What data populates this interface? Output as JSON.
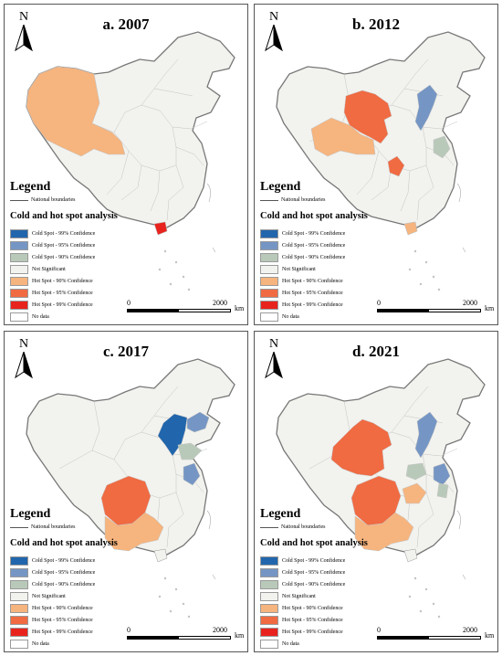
{
  "north_label": "N",
  "legend": {
    "title": "Legend",
    "national_boundaries": "National boundaries",
    "section_title": "Cold and hot spot analysis",
    "items": [
      {
        "key": "cs99",
        "label": "Cold Spot - 99% Confidence",
        "color": "#2166ac"
      },
      {
        "key": "cs95",
        "label": "Cold Spot - 95% Confidence",
        "color": "#7596c4"
      },
      {
        "key": "cs90",
        "label": "Cold Spot - 90% Confidence",
        "color": "#b9c9b9"
      },
      {
        "key": "ns",
        "label": "Not Significant",
        "color": "#f2f2ee"
      },
      {
        "key": "hs90",
        "label": "Hot Spot - 90% Confidence",
        "color": "#f6b47e"
      },
      {
        "key": "hs95",
        "label": "Hot Spot - 95% Confidence",
        "color": "#f06a42"
      },
      {
        "key": "hs99",
        "label": "Hot Spot - 99% Confidence",
        "color": "#e8231e"
      },
      {
        "key": "nd",
        "label": "No data",
        "color": "#ffffff"
      }
    ]
  },
  "scale": {
    "start": "0",
    "end": "2000",
    "unit": "km"
  },
  "panels": [
    {
      "title": "a. 2007",
      "regions": [
        {
          "name": "northwest",
          "class": "hs90"
        },
        {
          "name": "hainan",
          "class": "hs99"
        }
      ]
    },
    {
      "title": "b. 2012",
      "regions": [
        {
          "name": "north-central",
          "class": "hs95"
        },
        {
          "name": "qinghai",
          "class": "hs90"
        },
        {
          "name": "chongqing",
          "class": "hs95"
        },
        {
          "name": "hainan",
          "class": "hs90"
        },
        {
          "name": "hebei",
          "class": "cs95"
        },
        {
          "name": "jiangsu",
          "class": "cs90"
        }
      ]
    },
    {
      "title": "c. 2017",
      "regions": [
        {
          "name": "sichuan",
          "class": "hs95"
        },
        {
          "name": "yunnan-guizhou",
          "class": "hs90"
        },
        {
          "name": "beijing-hebei",
          "class": "cs99"
        },
        {
          "name": "liaoning",
          "class": "cs95"
        },
        {
          "name": "shandong",
          "class": "cs90"
        },
        {
          "name": "jiangsu",
          "class": "cs95"
        }
      ]
    },
    {
      "title": "d. 2021",
      "regions": [
        {
          "name": "gansu-qinghai",
          "class": "hs95"
        },
        {
          "name": "sichuan",
          "class": "hs95"
        },
        {
          "name": "yunnan-guizhou",
          "class": "hs90"
        },
        {
          "name": "hubei",
          "class": "hs90"
        },
        {
          "name": "hebei",
          "class": "cs95"
        },
        {
          "name": "henan",
          "class": "cs90"
        },
        {
          "name": "jiangsu",
          "class": "cs95"
        },
        {
          "name": "zhejiang",
          "class": "cs90"
        }
      ]
    }
  ]
}
